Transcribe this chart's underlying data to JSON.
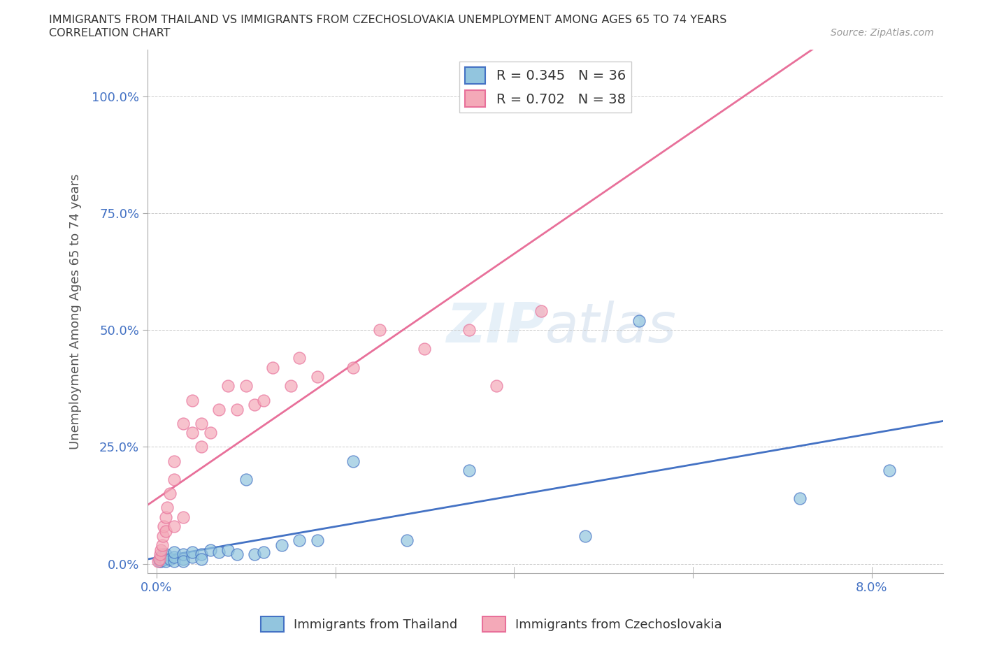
{
  "title_line1": "IMMIGRANTS FROM THAILAND VS IMMIGRANTS FROM CZECHOSLOVAKIA UNEMPLOYMENT AMONG AGES 65 TO 74 YEARS",
  "title_line2": "CORRELATION CHART",
  "source": "Source: ZipAtlas.com",
  "ylabel_label": "Unemployment Among Ages 65 to 74 years",
  "legend1_label": "R = 0.345   N = 36",
  "legend2_label": "R = 0.702   N = 38",
  "color_thailand": "#92C5DE",
  "color_czech": "#F4A9B8",
  "color_line_thailand": "#4472C4",
  "color_line_czech": "#E8709A",
  "watermark": "ZIPatlas",
  "background_color": "#ffffff",
  "grid_color": "#cccccc",
  "title_color": "#333333",
  "axis_label_color": "#555555",
  "tick_color": "#4472C4",
  "xlim": [
    -0.001,
    0.088
  ],
  "ylim": [
    -0.02,
    1.1
  ],
  "thailand_x": [
    0.0003,
    0.0003,
    0.0005,
    0.0005,
    0.0007,
    0.001,
    0.001,
    0.001,
    0.0015,
    0.002,
    0.002,
    0.002,
    0.003,
    0.003,
    0.003,
    0.004,
    0.004,
    0.005,
    0.005,
    0.006,
    0.007,
    0.008,
    0.009,
    0.01,
    0.011,
    0.012,
    0.014,
    0.016,
    0.018,
    0.022,
    0.028,
    0.035,
    0.048,
    0.054,
    0.072,
    0.082
  ],
  "thailand_y": [
    0.005,
    0.01,
    0.005,
    0.015,
    0.02,
    0.01,
    0.02,
    0.005,
    0.01,
    0.005,
    0.015,
    0.025,
    0.01,
    0.02,
    0.005,
    0.015,
    0.025,
    0.02,
    0.01,
    0.03,
    0.025,
    0.03,
    0.02,
    0.18,
    0.02,
    0.025,
    0.04,
    0.05,
    0.05,
    0.22,
    0.05,
    0.2,
    0.06,
    0.52,
    0.14,
    0.2
  ],
  "czech_x": [
    0.0002,
    0.0003,
    0.0004,
    0.0005,
    0.0006,
    0.0007,
    0.0008,
    0.001,
    0.001,
    0.0012,
    0.0015,
    0.002,
    0.002,
    0.002,
    0.003,
    0.003,
    0.004,
    0.004,
    0.005,
    0.005,
    0.006,
    0.007,
    0.008,
    0.009,
    0.01,
    0.011,
    0.012,
    0.013,
    0.015,
    0.016,
    0.018,
    0.022,
    0.025,
    0.03,
    0.035,
    0.038,
    0.043,
    0.048
  ],
  "czech_y": [
    0.005,
    0.01,
    0.02,
    0.03,
    0.04,
    0.06,
    0.08,
    0.07,
    0.1,
    0.12,
    0.15,
    0.08,
    0.18,
    0.22,
    0.1,
    0.3,
    0.28,
    0.35,
    0.25,
    0.3,
    0.28,
    0.33,
    0.38,
    0.33,
    0.38,
    0.34,
    0.35,
    0.42,
    0.38,
    0.44,
    0.4,
    0.42,
    0.5,
    0.46,
    0.5,
    0.38,
    0.54,
    1.0
  ]
}
